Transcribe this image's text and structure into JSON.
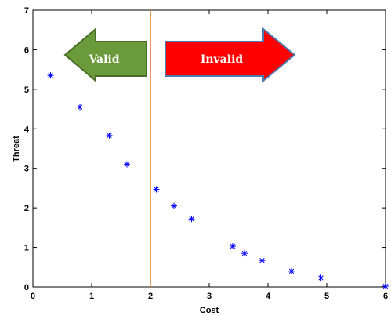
{
  "chart_data": {
    "type": "scatter",
    "xlabel": "Cost",
    "ylabel": "Threat",
    "xlim": [
      0,
      6
    ],
    "ylim": [
      0,
      7
    ],
    "xticks": [
      "0",
      "1",
      "2",
      "3",
      "4",
      "5",
      "6"
    ],
    "yticks": [
      "0",
      "1",
      "2",
      "3",
      "4",
      "5",
      "6",
      "7"
    ],
    "grid": false,
    "marker": "star",
    "marker_color": "#0000ff",
    "points": [
      {
        "x": 0.3,
        "y": 5.35
      },
      {
        "x": 0.8,
        "y": 4.55
      },
      {
        "x": 1.3,
        "y": 3.83
      },
      {
        "x": 1.6,
        "y": 3.1
      },
      {
        "x": 2.1,
        "y": 2.47
      },
      {
        "x": 2.4,
        "y": 2.05
      },
      {
        "x": 2.7,
        "y": 1.72
      },
      {
        "x": 3.4,
        "y": 1.03
      },
      {
        "x": 3.6,
        "y": 0.85
      },
      {
        "x": 3.9,
        "y": 0.67
      },
      {
        "x": 4.4,
        "y": 0.4
      },
      {
        "x": 4.9,
        "y": 0.23
      },
      {
        "x": 6.0,
        "y": 0.02
      }
    ],
    "threshold_line": {
      "x": 2.0,
      "color": "#e07820"
    },
    "annotations": [
      {
        "text": "Valid",
        "direction": "left",
        "fill": "#6a9a3a",
        "stroke": "#4a6e28"
      },
      {
        "text": "Invalid",
        "direction": "right",
        "fill": "#ff0000",
        "stroke": "#4a7ab0"
      }
    ]
  }
}
